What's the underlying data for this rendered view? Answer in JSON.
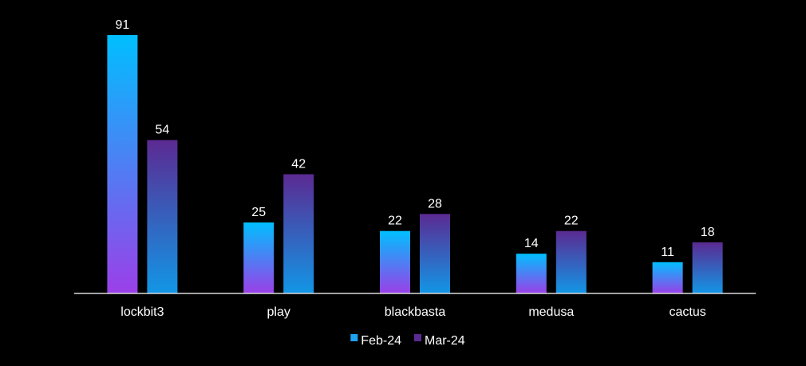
{
  "chart_data": {
    "type": "bar",
    "categories": [
      "lockbit3",
      "play",
      "blackbasta",
      "medusa",
      "cactus"
    ],
    "series": [
      {
        "name": "Feb-24",
        "values": [
          91,
          25,
          22,
          14,
          11
        ],
        "gradient_top": "#00bfff",
        "gradient_bottom": "#9b3fe8",
        "legend_color": "#1ea1f0"
      },
      {
        "name": "Mar-24",
        "values": [
          54,
          42,
          28,
          22,
          18
        ],
        "gradient_top": "#5b2a92",
        "gradient_bottom": "#1296e6",
        "legend_color": "#5b2a92"
      }
    ],
    "title": "",
    "xlabel": "",
    "ylabel": "",
    "ylim": [
      0,
      91
    ],
    "grid": false,
    "legend": "bottom-center",
    "data_labels": true,
    "axis_color": "#d9d9d9",
    "background": "#000000"
  }
}
